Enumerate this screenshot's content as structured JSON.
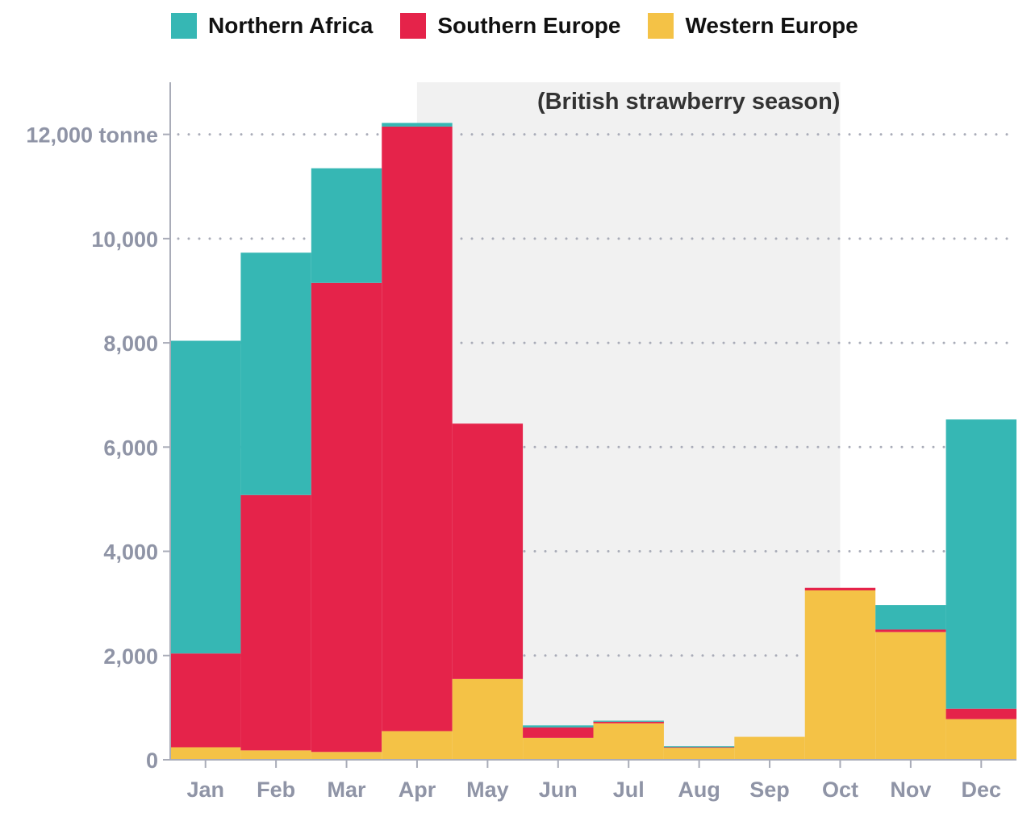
{
  "legend": {
    "items": [
      {
        "label": "Northern Africa",
        "color": "#36b7b4"
      },
      {
        "label": "Southern Europe",
        "color": "#e5234a"
      },
      {
        "label": "Western Europe",
        "color": "#f4c246"
      }
    ]
  },
  "chart_data": {
    "type": "bar",
    "stacked": true,
    "categories": [
      "Jan",
      "Feb",
      "Mar",
      "Apr",
      "May",
      "Jun",
      "Jul",
      "Aug",
      "Sep",
      "Oct",
      "Nov",
      "Dec"
    ],
    "series": [
      {
        "name": "Western Europe",
        "color": "#f4c246",
        "values": [
          240,
          180,
          150,
          550,
          1550,
          420,
          700,
          230,
          440,
          3250,
          2450,
          780
        ]
      },
      {
        "name": "Southern Europe",
        "color": "#e5234a",
        "values": [
          1800,
          4900,
          9000,
          11600,
          4900,
          200,
          30,
          10,
          0,
          50,
          50,
          200
        ]
      },
      {
        "name": "Northern Africa",
        "color": "#36b7b4",
        "values": [
          6000,
          4650,
          2200,
          70,
          0,
          40,
          20,
          20,
          0,
          0,
          470,
          5550
        ]
      }
    ],
    "y_ticks": [
      0,
      2000,
      4000,
      6000,
      8000,
      10000,
      12000
    ],
    "y_tick_labels": [
      "0",
      "2,000",
      "4,000",
      "6,000",
      "8,000",
      "10,000",
      "12,000 tonne"
    ],
    "ylim": [
      0,
      13000
    ],
    "grid": true,
    "legend_position": "top",
    "highlight": {
      "label": "(British strawberry season)",
      "from": "Apr",
      "to": "Oct",
      "color": "#f1f1f1"
    },
    "axis_color": "#a9acb8"
  }
}
